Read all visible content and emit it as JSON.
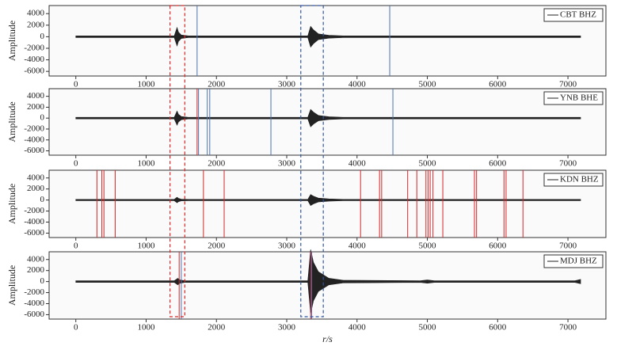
{
  "chart_data": [
    {
      "type": "line",
      "ylabel": "Amplitude",
      "xlim": [
        -380,
        7540
      ],
      "ylim": [
        -6800,
        5400
      ],
      "xticks": [
        0,
        1000,
        2000,
        3000,
        4000,
        5000,
        6000,
        7000
      ],
      "yticks": [
        -6000,
        -4000,
        -2000,
        0,
        2000,
        4000
      ],
      "series": [
        {
          "name": "CBT BHZ",
          "color": "#222222",
          "x": [
            0,
            1400,
            1440,
            1460,
            1500,
            1600,
            3300,
            3340,
            3380,
            3450,
            3600,
            3800,
            7180
          ],
          "values": [
            150,
            150,
            1600,
            800,
            300,
            150,
            150,
            1800,
            1200,
            500,
            250,
            150,
            150
          ]
        }
      ],
      "markers": [
        {
          "color": "#4c72b0",
          "x": [
            1725,
            4465
          ]
        }
      ]
    },
    {
      "type": "line",
      "ylabel": "Amplitude",
      "xlim": [
        -380,
        7540
      ],
      "ylim": [
        -6800,
        5400
      ],
      "xticks": [
        0,
        1000,
        2000,
        3000,
        4000,
        5000,
        6000,
        7000
      ],
      "yticks": [
        -6000,
        -4000,
        -2000,
        0,
        2000,
        4000
      ],
      "series": [
        {
          "name": "YNB BHE",
          "color": "#222222",
          "x": [
            0,
            1400,
            1440,
            1460,
            1500,
            1600,
            3300,
            3340,
            3380,
            3450,
            3600,
            3800,
            7180
          ],
          "values": [
            150,
            150,
            1300,
            700,
            300,
            150,
            150,
            1600,
            1100,
            500,
            250,
            150,
            150
          ]
        }
      ],
      "markers": [
        {
          "color": "#4c72b0",
          "x": [
            1745,
            1870,
            1905,
            2775,
            4510
          ]
        },
        {
          "color": "#d62728",
          "x": [
            1725
          ]
        }
      ]
    },
    {
      "type": "line",
      "ylabel": "Amplitude",
      "xlim": [
        -380,
        7540
      ],
      "ylim": [
        -6800,
        5400
      ],
      "xticks": [
        0,
        1000,
        2000,
        3000,
        4000,
        5000,
        6000,
        7000
      ],
      "yticks": [
        -6000,
        -4000,
        -2000,
        0,
        2000,
        4000
      ],
      "series": [
        {
          "name": "KDN BHZ",
          "color": "#222222",
          "x": [
            0,
            1400,
            1440,
            1460,
            1500,
            1600,
            3300,
            3340,
            3380,
            3450,
            3600,
            3800,
            7180
          ],
          "values": [
            120,
            120,
            500,
            300,
            150,
            120,
            120,
            1000,
            700,
            350,
            200,
            120,
            120
          ]
        }
      ],
      "markers": [
        {
          "color": "#d62728",
          "x": [
            300,
            370,
            400,
            560,
            1815,
            2110,
            4050,
            4320,
            4350,
            4720,
            4850,
            4980,
            5010,
            5040,
            5080,
            5220,
            5670,
            5700,
            6090,
            6120,
            6360
          ]
        }
      ]
    },
    {
      "type": "line",
      "ylabel": "Amplitude",
      "xlabel": "r/s",
      "xlim": [
        -380,
        7540
      ],
      "ylim": [
        -6800,
        5400
      ],
      "xticks": [
        0,
        1000,
        2000,
        3000,
        4000,
        5000,
        6000,
        7000
      ],
      "yticks": [
        -6000,
        -4000,
        -2000,
        0,
        2000,
        4000
      ],
      "series": [
        {
          "name": "MDJ BHZ",
          "color": "#222222",
          "x": [
            0,
            1400,
            1450,
            1480,
            1550,
            3300,
            3340,
            3380,
            3450,
            3600,
            3800,
            4900,
            5000,
            5100,
            7100,
            7180
          ],
          "values": [
            150,
            150,
            600,
            300,
            150,
            150,
            5800,
            3500,
            1800,
            600,
            250,
            150,
            300,
            150,
            150,
            400
          ]
        }
      ],
      "markers": [
        {
          "color": "#d62728",
          "x": [
            1470,
            3340
          ]
        },
        {
          "color": "#4c72b0",
          "x": [
            1500,
            3355
          ]
        }
      ]
    }
  ],
  "highlight_boxes": [
    {
      "x": [
        1340,
        1550
      ],
      "color": "#d62728"
    },
    {
      "x": [
        3200,
        3520
      ],
      "color": "#2f55a4"
    }
  ]
}
